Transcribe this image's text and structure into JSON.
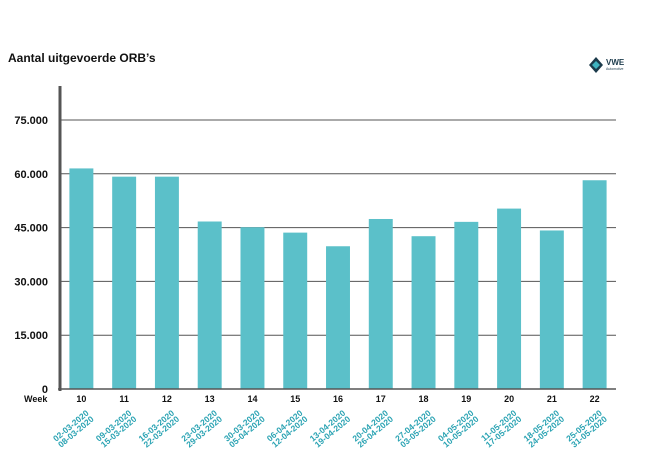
{
  "chart_data": {
    "type": "bar",
    "title": "Aantal uitgevoerde ORB’s",
    "xlabel": "",
    "ylabel": "",
    "ylim": [
      0,
      90000
    ],
    "yticks": [
      0,
      15000,
      30000,
      45000,
      60000,
      75000
    ],
    "ytick_labels": [
      "0",
      "15.000",
      "30.000",
      "45.000",
      "60.000",
      "75.000"
    ],
    "week_prefix": "Week",
    "categories": [
      "10",
      "11",
      "12",
      "13",
      "14",
      "15",
      "16",
      "17",
      "18",
      "19",
      "20",
      "21",
      "22"
    ],
    "date_labels": [
      [
        "02-03-2020",
        "08-03-2020"
      ],
      [
        "09-03-2020",
        "15-03-2020"
      ],
      [
        "16-03-2020",
        "22-03-2020"
      ],
      [
        "23-03-2020",
        "29-03-2020"
      ],
      [
        "30-03-2020",
        "05-04-2020"
      ],
      [
        "06-04-2020",
        "12-04-2020"
      ],
      [
        "13-04-2020",
        "19-04-2020"
      ],
      [
        "20-04-2020",
        "26-04-2020"
      ],
      [
        "27-04-2020",
        "03-05-2020"
      ],
      [
        "04-05-2020",
        "10-05-2020"
      ],
      [
        "11-05-2020",
        "17-05-2020"
      ],
      [
        "18-05-2020",
        "24-05-2020"
      ],
      [
        "25-05-2020",
        "31-05-2020"
      ]
    ],
    "values": [
      61500,
      59200,
      59200,
      46700,
      45100,
      43600,
      39800,
      47400,
      42600,
      46600,
      50300,
      44200,
      58200
    ],
    "grid": true,
    "legend": "none"
  },
  "colors": {
    "bar": "#5bc0c9",
    "axis": "#555555",
    "grid": "#555555",
    "date_text": "#2aa3b3"
  },
  "logo": {
    "text": "VWE",
    "subtext": "Automotive"
  }
}
